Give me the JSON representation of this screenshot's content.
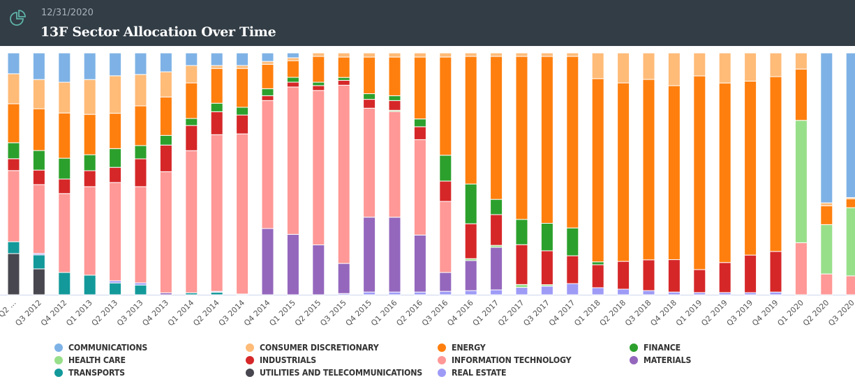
{
  "header": {
    "date": "12/31/2020",
    "title": "13F Sector Allocation Over Time",
    "icon": "pie-chart-icon"
  },
  "chart_data": {
    "type": "bar",
    "stacked": true,
    "normalized": true,
    "title": "13F Sector Allocation Over Time",
    "xlabel": "",
    "ylabel": "",
    "ylim": [
      0,
      100
    ],
    "grid": false,
    "legend_position": "bottom",
    "categories": [
      "Q2 ...",
      "Q3 2012",
      "Q4 2012",
      "Q1 2013",
      "Q2 2013",
      "Q3 2013",
      "Q4 2013",
      "Q1 2014",
      "Q2 2014",
      "Q3 2014",
      "Q4 2014",
      "Q1 2015",
      "Q2 2015",
      "Q3 2015",
      "Q4 2015",
      "Q1 2016",
      "Q2 2016",
      "Q3 2016",
      "Q4 2016",
      "Q1 2017",
      "Q2 2017",
      "Q3 2017",
      "Q4 2017",
      "Q1 2018",
      "Q2 2018",
      "Q3 2018",
      "Q4 2018",
      "Q1 2019",
      "Q2 2019",
      "Q3 2019",
      "Q4 2019",
      "Q1 2020",
      "Q2 2020",
      "Q3 2020"
    ],
    "series": [
      {
        "name": "UTILITIES AND TELECOMMUNICATIONS",
        "color": "#48474f",
        "values": [
          17.0,
          10.7,
          0,
          0,
          0,
          0,
          0,
          0,
          0,
          0.3,
          0,
          0,
          0,
          0,
          0,
          0,
          0,
          0,
          0,
          0,
          0,
          0,
          0,
          0,
          0,
          0,
          0,
          0,
          0,
          0,
          0,
          0,
          0,
          0
        ]
      },
      {
        "name": "TRANSPORTS",
        "color": "#13999a",
        "values": [
          4.9,
          5.8,
          9.2,
          8.1,
          4.9,
          4.0,
          0,
          0.8,
          1.0,
          0,
          0,
          0,
          0,
          0,
          0,
          0,
          0,
          0,
          0,
          0,
          0,
          0,
          0,
          0,
          0,
          0,
          0,
          0,
          0,
          0,
          0,
          0,
          0,
          0
        ]
      },
      {
        "name": "REAL ESTATE",
        "color": "#9e9bf7",
        "values": [
          0,
          0.6,
          0,
          0,
          0.9,
          0.9,
          0,
          0,
          0.4,
          0,
          0,
          0,
          0,
          0.5,
          1.1,
          1.1,
          1.1,
          1.4,
          1.7,
          2.0,
          3.0,
          3.5,
          4.6,
          2.9,
          2.3,
          1.7,
          1.1,
          0.9,
          0.9,
          0.9,
          1.1,
          0,
          0,
          0
        ]
      },
      {
        "name": "MATERIALS",
        "color": "#9467bd",
        "values": [
          0,
          0,
          0,
          0,
          0,
          0,
          0.8,
          0,
          0,
          0,
          27.4,
          25.0,
          20.6,
          12.4,
          30.5,
          30.8,
          23.4,
          7.8,
          12.4,
          17.6,
          0,
          0,
          0,
          0,
          0,
          0,
          0,
          0,
          0,
          0,
          0,
          0,
          0,
          0
        ]
      },
      {
        "name": "INFORMATION TECHNOLOGY",
        "color": "#ff9896",
        "values": [
          29.4,
          28.5,
          32.6,
          36.6,
          40.9,
          39.8,
          50.1,
          58.8,
          64.8,
          66.3,
          53.0,
          61.0,
          63.8,
          73.5,
          44.4,
          43.5,
          39.2,
          29.4,
          0,
          0,
          0,
          0,
          0,
          0,
          0,
          0,
          0,
          0,
          0,
          0,
          0,
          21.3,
          8.6,
          7.8
        ]
      },
      {
        "name": "HEALTH CARE",
        "color": "#98df8a",
        "values": [
          0,
          0,
          0,
          0,
          0,
          0,
          0,
          0,
          0,
          0,
          0,
          0,
          0,
          0,
          0,
          0.5,
          0,
          0,
          0.8,
          0.8,
          1.2,
          0.6,
          0,
          0,
          0,
          0,
          0,
          0,
          0,
          0,
          0,
          50.1,
          20.4,
          28.2
        ]
      },
      {
        "name": "INDUSTRIALS",
        "color": "#d62728",
        "values": [
          4.9,
          6.0,
          6.0,
          6.6,
          6.3,
          11.5,
          11.0,
          10.4,
          9.5,
          7.8,
          2.0,
          2.0,
          2.0,
          2.0,
          3.6,
          4.0,
          5.3,
          8.4,
          14.4,
          12.7,
          16.4,
          13.8,
          11.5,
          9.5,
          11.5,
          12.7,
          13.4,
          9.5,
          12.4,
          16.1,
          16.8,
          0,
          0,
          0
        ]
      },
      {
        "name": "FINANCE",
        "color": "#2ca02c",
        "values": [
          6.6,
          8.1,
          8.6,
          6.6,
          7.8,
          5.5,
          4.0,
          2.9,
          3.5,
          3.2,
          2.9,
          2.0,
          1.4,
          1.2,
          2.3,
          2.0,
          3.2,
          10.7,
          16.4,
          6.3,
          10.4,
          11.2,
          11.5,
          1.2,
          0,
          0,
          0,
          0,
          0,
          0,
          0,
          0,
          0,
          0
        ]
      },
      {
        "name": "ENERGY",
        "color": "#ff7f0e",
        "values": [
          16.1,
          17.3,
          18.7,
          16.7,
          14.7,
          16.4,
          15.9,
          14.7,
          14.4,
          16.1,
          10.1,
          6.9,
          10.7,
          8.4,
          14.9,
          15.9,
          25.4,
          40.6,
          52.7,
          59.1,
          67.1,
          68.0,
          70.9,
          75.8,
          73.8,
          74.4,
          71.8,
          80.1,
          74.1,
          74.6,
          72.3,
          21.0,
          7.8,
          3.7
        ]
      },
      {
        "name": "CONSUMER DISCRETIONARY",
        "color": "#ffbb78",
        "values": [
          12.4,
          12.1,
          12.7,
          14.4,
          15.6,
          13.0,
          10.4,
          7.2,
          1.2,
          1.2,
          1.2,
          1.2,
          1.4,
          1.7,
          1.7,
          1.7,
          1.7,
          1.7,
          1.4,
          1.4,
          1.4,
          1.4,
          1.4,
          10.6,
          12.4,
          10.9,
          13.5,
          9.5,
          12.4,
          12.1,
          9.8,
          6.6,
          1.2,
          0.5
        ]
      },
      {
        "name": "COMMUNICATIONS",
        "color": "#7eb2e6",
        "values": [
          8.6,
          11.0,
          12.1,
          11.0,
          9.5,
          8.9,
          7.8,
          5.2,
          5.2,
          5.2,
          3.5,
          2.0,
          0,
          0,
          0,
          0,
          0,
          0,
          0,
          0,
          0,
          0,
          0,
          0,
          0,
          0,
          0,
          0,
          0,
          0,
          0,
          0,
          62.0,
          59.8
        ]
      }
    ]
  },
  "legend": [
    {
      "label": "COMMUNICATIONS",
      "color": "#7eb2e6"
    },
    {
      "label": "CONSUMER DISCRETIONARY",
      "color": "#ffbb78"
    },
    {
      "label": "ENERGY",
      "color": "#ff7f0e"
    },
    {
      "label": "FINANCE",
      "color": "#2ca02c"
    },
    {
      "label": "HEALTH CARE",
      "color": "#98df8a"
    },
    {
      "label": "INDUSTRIALS",
      "color": "#d62728"
    },
    {
      "label": "INFORMATION TECHNOLOGY",
      "color": "#ff9896"
    },
    {
      "label": "MATERIALS",
      "color": "#9467bd"
    },
    {
      "label": "TRANSPORTS",
      "color": "#13999a"
    },
    {
      "label": "UTILITIES AND TELECOMMUNICATIONS",
      "color": "#48474f"
    },
    {
      "label": "REAL ESTATE",
      "color": "#9e9bf7"
    }
  ]
}
